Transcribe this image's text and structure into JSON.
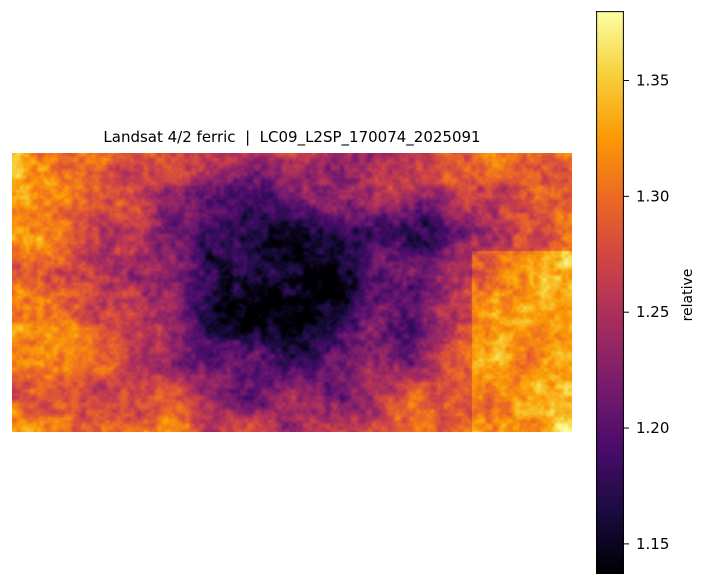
{
  "chart_data": {
    "type": "heatmap",
    "title": "Landsat 4/2 ferric  |  LC09_L2SP_170074_2025091",
    "xlabel": "",
    "ylabel": "",
    "axes_visible": false,
    "colormap": "inferno",
    "colorbar": {
      "label": "relative",
      "vmin": 1.137,
      "vmax": 1.38,
      "ticks": [
        1.15,
        1.2,
        1.25,
        1.3,
        1.35
      ],
      "tick_labels": [
        "1.15",
        "1.20",
        "1.25",
        "1.30",
        "1.35"
      ]
    },
    "colormap_stops": [
      "#000004",
      "#1b0c41",
      "#4a0c6b",
      "#781c6d",
      "#a52c60",
      "#cf4446",
      "#ed6925",
      "#fb9b06",
      "#f7d13d",
      "#fcffa4"
    ]
  }
}
